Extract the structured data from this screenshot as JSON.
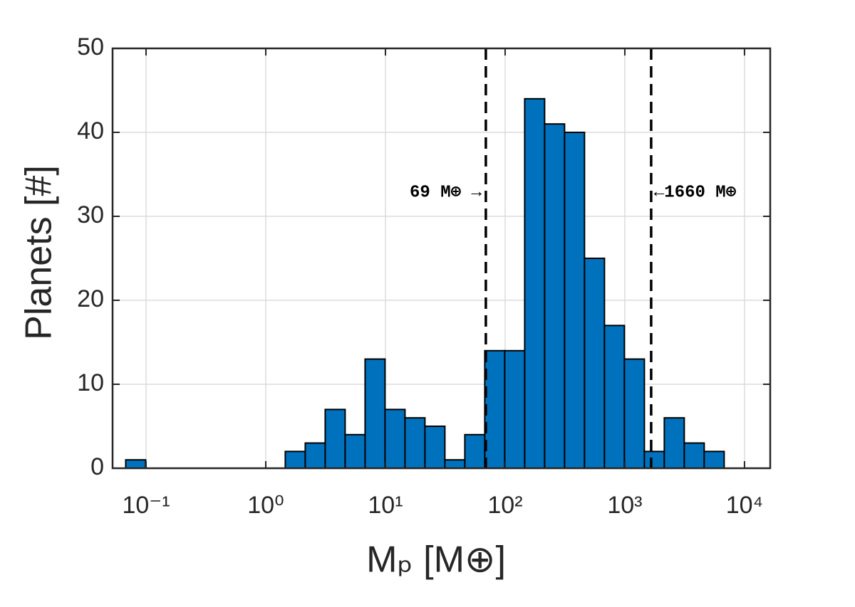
{
  "chart_data": {
    "type": "histogram",
    "x_label": "Mₚ [M⊕]",
    "y_label": "Planets [#]",
    "x_scale": "log",
    "bins": [
      0.0676,
      0.0992,
      0.1456,
      0.2138,
      0.3138,
      0.4606,
      0.676,
      0.992,
      1.456,
      2.138,
      3.138,
      4.606,
      6.761,
      9.924,
      14.57,
      21.38,
      31.38,
      46.06,
      67.61,
      99.24,
      145.7,
      213.8,
      313.8,
      460.6,
      676.1,
      992.4,
      1457,
      2138,
      3138,
      4606,
      6761
    ],
    "counts": [
      1,
      0,
      0,
      0,
      0,
      0,
      0,
      0,
      2,
      3,
      7,
      4,
      13,
      7,
      6,
      5,
      1,
      4,
      14,
      14,
      44,
      41,
      40,
      25,
      17,
      13,
      2,
      6,
      3,
      2
    ],
    "color": "#0072bd",
    "xlim": [
      0.0525,
      16400
    ],
    "xticks": [
      {
        "value": 0.1,
        "label": "10⁻¹"
      },
      {
        "value": 1,
        "label": "10⁰"
      },
      {
        "value": 10,
        "label": "10¹"
      },
      {
        "value": 100,
        "label": "10²"
      },
      {
        "value": 1000,
        "label": "10³"
      },
      {
        "value": 10000,
        "label": "10⁴"
      }
    ],
    "ylim": [
      0,
      50
    ],
    "yticks": [
      0,
      10,
      20,
      30,
      40,
      50
    ],
    "grid": true,
    "vlines": [
      {
        "value": 69,
        "label": "69 M⊕ →"
      },
      {
        "value": 1660,
        "label": "←1660 M⊕"
      }
    ]
  }
}
